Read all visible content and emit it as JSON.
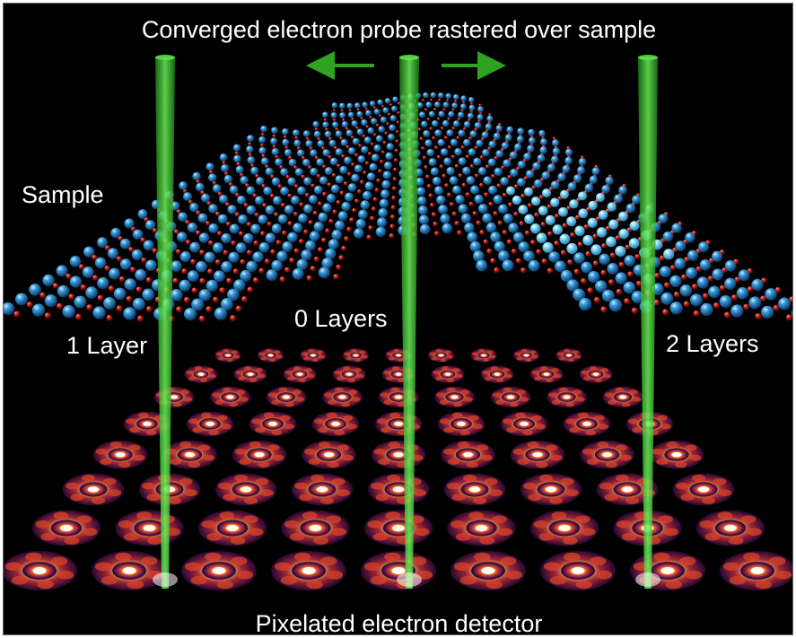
{
  "labels": {
    "title": "Converged electron probe rastered over sample",
    "sample": "Sample",
    "zero_layers": "0 Layers",
    "one_layer": "1 Layer",
    "two_layers": "2 Layers",
    "detector": "Pixelated electron detector"
  },
  "colors": {
    "background": "#000000",
    "metal_atom": "#2f86c8",
    "metal_atom_bright": "#6fd0f0",
    "chalcogen_atom": "#c21b12",
    "beam": "#39c22a",
    "arrow": "#2ea321",
    "pattern_glow": "#ffe9a0",
    "pattern_mid": "#e0572a",
    "pattern_dark": "#3a0b4a"
  },
  "icons": {
    "raster_arrows": "double-arrow-left-right"
  }
}
